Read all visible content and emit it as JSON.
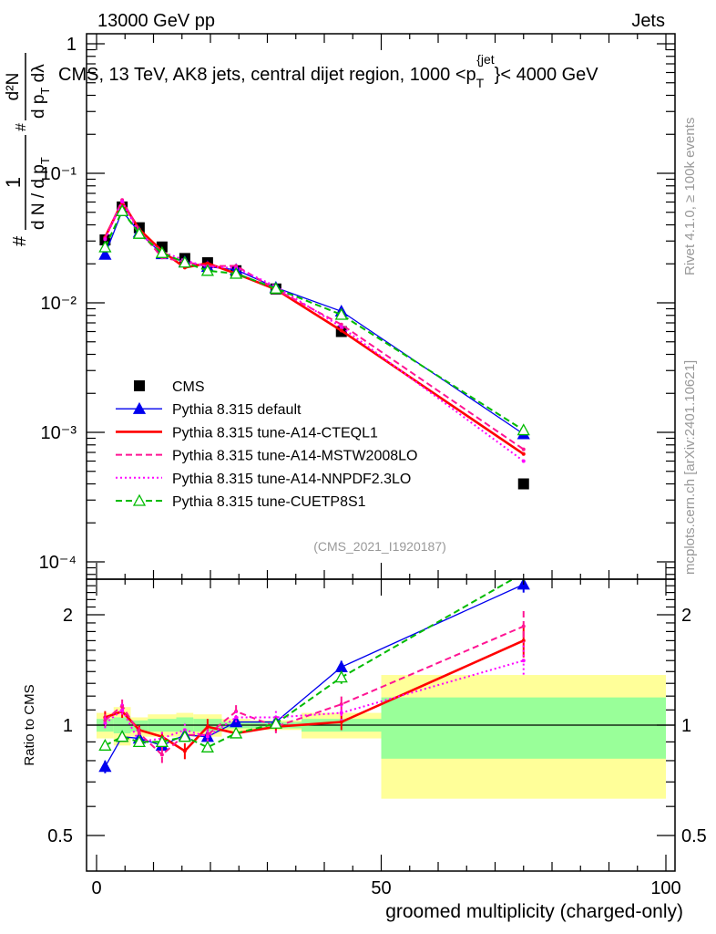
{
  "header": {
    "left": "13000 GeV pp",
    "right": "Jets"
  },
  "side_text": {
    "rivet": "Rivet 4.1.0, ≥ 100k events",
    "mcplots": "mcplots.cern.ch [arXiv:2401.10621]"
  },
  "chart_data": [
    {
      "type": "line",
      "title_parts": {
        "main": "CMS, 13 TeV, AK8 jets, central dijet region, 1000 <p",
        "sub": "T",
        "sup": "{jet",
        "tail": "}< 4000 GeV"
      },
      "ylabel_parts": {
        "num1": "1",
        "den1": "d N / d p",
        "den1_sub": "T",
        "num2": "d²N",
        "den2": "d p",
        "den2_sub": "T",
        "den2_tail": " dλ",
        "hash": "#"
      },
      "analysis_id": "(CMS_2021_I1920187)",
      "yscale": "log",
      "ylim": [
        7.4e-05,
        1.19
      ],
      "xlim": [
        -1.8,
        101.4
      ],
      "ytick_labels": [
        "1",
        "10⁻¹",
        "10⁻²",
        "10⁻³",
        "10⁻⁴"
      ],
      "ytick_values": [
        1,
        0.1,
        0.01,
        0.001,
        0.0001
      ],
      "bin_edges": [
        0,
        3,
        6,
        9,
        14,
        17,
        22,
        27,
        36,
        50,
        100
      ],
      "x": [
        1.5,
        4.5,
        7.5,
        11.5,
        15.5,
        19.5,
        24.5,
        31.5,
        43,
        75
      ],
      "legend_position": "bottom-left",
      "series": [
        {
          "name": "CMS",
          "color": "#000000",
          "style": "marker-square",
          "values": [
            0.0306,
            0.055,
            0.038,
            0.027,
            0.022,
            0.0204,
            0.0177,
            0.0128,
            0.006,
            0.0004
          ]
        },
        {
          "name": "Pythia 8.315 default",
          "color": "#0000ee",
          "style": "solid-triangle",
          "values": [
            0.0236,
            0.0512,
            0.035,
            0.0238,
            0.0207,
            0.019,
            0.018,
            0.0131,
            0.0086,
            0.00097
          ]
        },
        {
          "name": "Pythia 8.315 tune-A14-CTEQL1",
          "color": "#ff0000",
          "style": "solid-thick",
          "values": [
            0.0321,
            0.06,
            0.0369,
            0.0251,
            0.0187,
            0.0202,
            0.0168,
            0.0127,
            0.0061,
            0.00068
          ]
        },
        {
          "name": "Pythia 8.315 tune-A14-MSTW2008LO",
          "color": "#ff1493",
          "style": "dashed",
          "values": [
            0.0315,
            0.0622,
            0.0361,
            0.0224,
            0.0207,
            0.0192,
            0.0193,
            0.0127,
            0.0068,
            0.00074
          ]
        },
        {
          "name": "Pythia 8.315 tune-A14-NNPDF2.3LO",
          "color": "#ff00ff",
          "style": "dotted",
          "values": [
            0.0309,
            0.0605,
            0.0342,
            0.0248,
            0.0213,
            0.019,
            0.0186,
            0.0134,
            0.0065,
            0.0006
          ]
        },
        {
          "name": "Pythia 8.315 tune-CUETP8S1",
          "color": "#00bb00",
          "style": "dashed-open-triangle",
          "values": [
            0.0269,
            0.0512,
            0.0342,
            0.0243,
            0.0205,
            0.0177,
            0.0168,
            0.0129,
            0.0081,
            0.00104
          ]
        }
      ]
    },
    {
      "type": "line",
      "ylabel": "Ratio to CMS",
      "xlabel": "groomed multiplicity (charged-only)",
      "yscale": "log",
      "ylim": [
        0.4,
        2.5
      ],
      "ytick_labels": [
        "0.5",
        "1",
        "2"
      ],
      "ytick_values": [
        0.5,
        1,
        2
      ],
      "xtick_labels": [
        "0",
        "50",
        "100"
      ],
      "xtick_values": [
        0,
        50,
        100
      ],
      "x": [
        1.5,
        4.5,
        7.5,
        11.5,
        15.5,
        19.5,
        24.5,
        31.5,
        43,
        75
      ],
      "band_inner": {
        "color": "#99ff99",
        "low": [
          0.96,
          0.95,
          0.96,
          0.96,
          0.96,
          0.96,
          0.98,
          0.98,
          0.96,
          0.81
        ],
        "high": [
          1.04,
          1.05,
          1.03,
          1.04,
          1.05,
          1.04,
          1.02,
          1.02,
          1.04,
          1.19
        ]
      },
      "band_outer": {
        "color": "#ffff99",
        "low": [
          0.92,
          0.88,
          0.93,
          0.93,
          0.93,
          0.93,
          0.96,
          0.97,
          0.92,
          0.63
        ],
        "high": [
          1.08,
          1.12,
          1.05,
          1.07,
          1.08,
          1.07,
          1.04,
          1.03,
          1.08,
          1.37
        ]
      },
      "series": [
        {
          "name": "Pythia 8.315 default",
          "color": "#0000ee",
          "style": "solid-triangle",
          "values": [
            0.77,
            0.93,
            0.92,
            0.88,
            0.94,
            0.93,
            1.02,
            1.02,
            1.44,
            2.42
          ],
          "rel_err": [
            0.04,
            0.03,
            0.03,
            0.03,
            0.03,
            0.03,
            0.03,
            0.03,
            0.04,
            0.05
          ]
        },
        {
          "name": "Pythia 8.315 tune-A14-CTEQL1",
          "color": "#ff0000",
          "style": "solid-thick",
          "values": [
            1.05,
            1.09,
            0.97,
            0.93,
            0.85,
            0.99,
            0.95,
            0.99,
            1.02,
            1.7
          ],
          "rel_err": [
            0.04,
            0.04,
            0.03,
            0.03,
            0.05,
            0.05,
            0.03,
            0.03,
            0.05,
            0.1
          ]
        },
        {
          "name": "Pythia 8.315 tune-A14-MSTW2008LO",
          "color": "#ff1493",
          "style": "dashed",
          "values": [
            1.03,
            1.13,
            0.95,
            0.83,
            0.94,
            0.94,
            1.09,
            0.99,
            1.14,
            1.86
          ],
          "rel_err": [
            0.04,
            0.04,
            0.04,
            0.05,
            0.04,
            0.04,
            0.04,
            0.04,
            0.05,
            0.1
          ]
        },
        {
          "name": "Pythia 8.315 tune-A14-NNPDF2.3LO",
          "color": "#ff00ff",
          "style": "dotted",
          "values": [
            1.01,
            1.1,
            0.9,
            0.92,
            0.97,
            0.93,
            1.05,
            1.05,
            1.08,
            1.5
          ],
          "rel_err": [
            0.04,
            0.04,
            0.04,
            0.04,
            0.04,
            0.04,
            0.04,
            0.04,
            0.05,
            0.1
          ]
        },
        {
          "name": "Pythia 8.315 tune-CUETP8S1",
          "color": "#00bb00",
          "style": "dashed-open-triangle",
          "values": [
            0.88,
            0.93,
            0.9,
            0.9,
            0.93,
            0.87,
            0.95,
            1.01,
            1.35,
            2.6
          ],
          "rel_err": [
            0.03,
            0.03,
            0.03,
            0.03,
            0.03,
            0.03,
            0.03,
            0.03,
            0.04,
            0.05
          ]
        }
      ]
    }
  ]
}
